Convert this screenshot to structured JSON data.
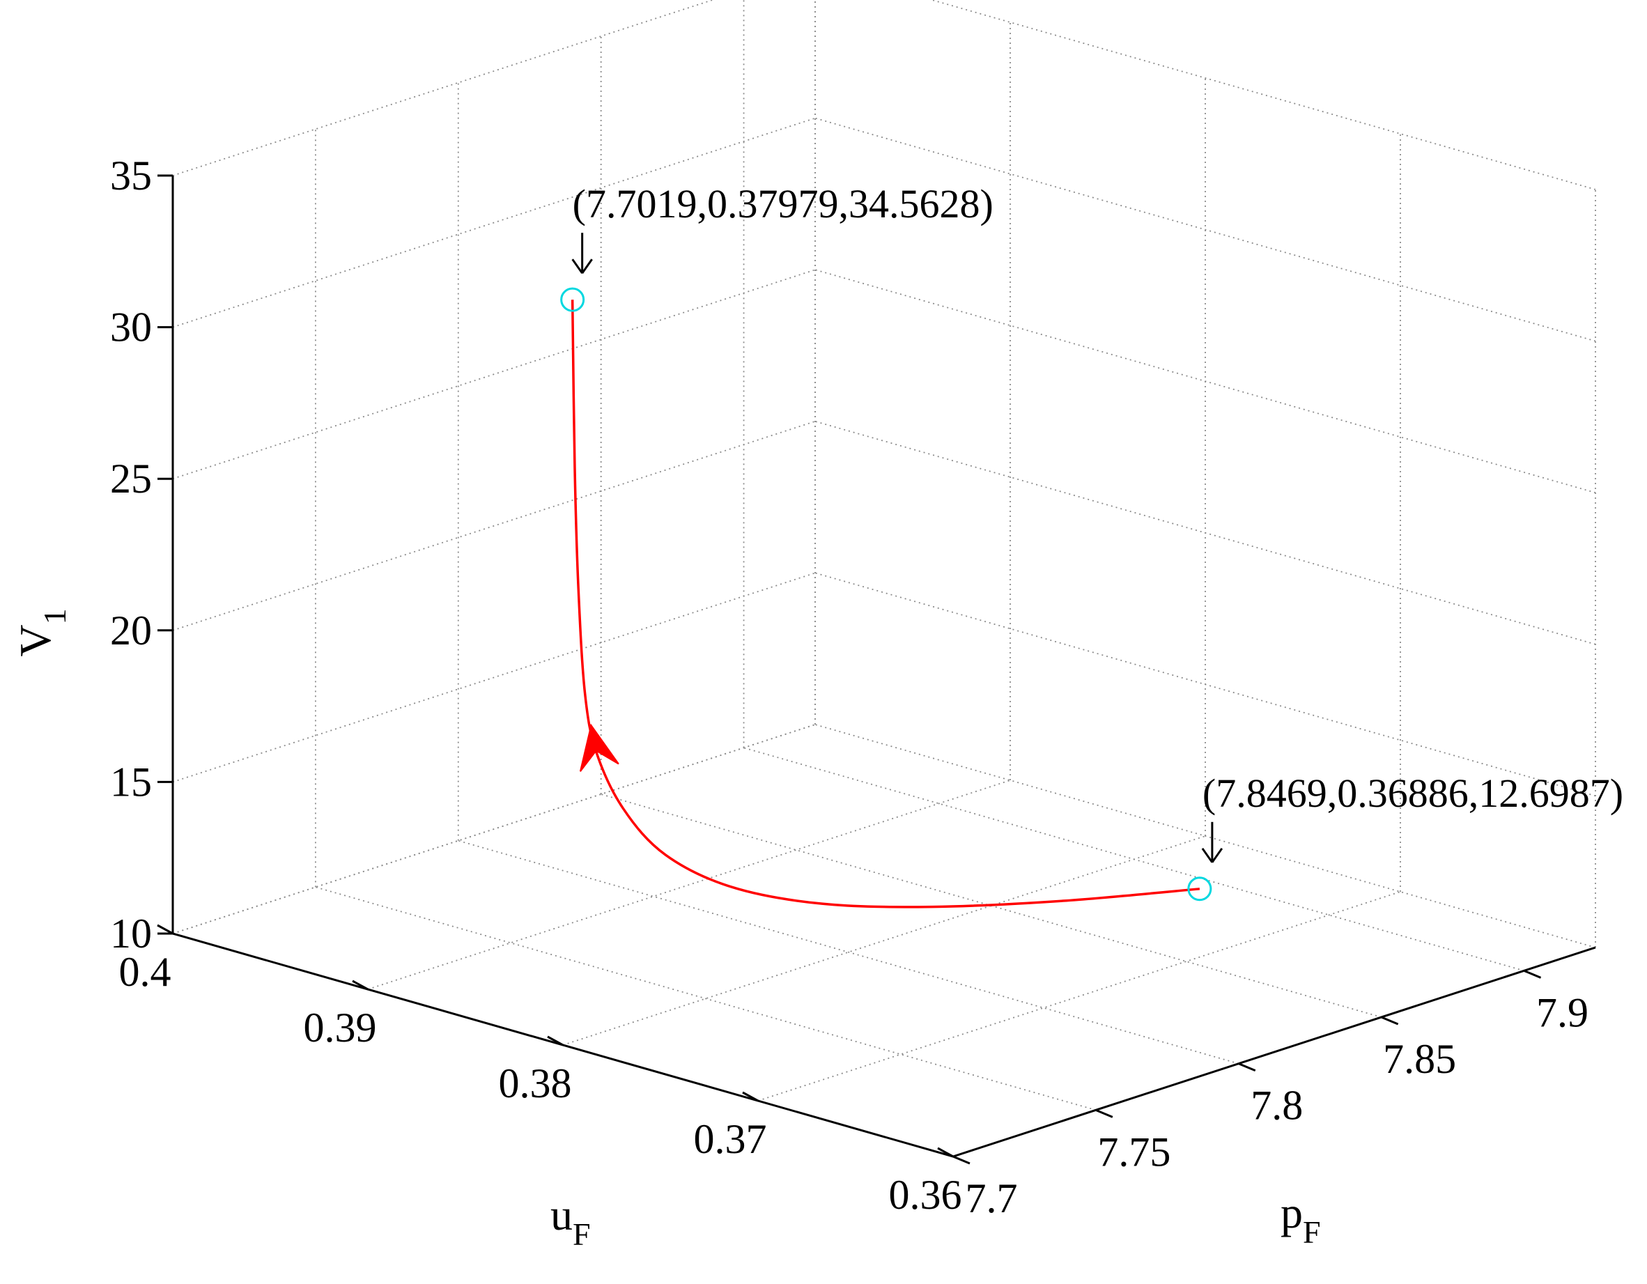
{
  "chart_data": {
    "type": "line3d",
    "axes": {
      "x": {
        "label": "p",
        "label_sub": "F",
        "range": [
          7.7,
          7.925
        ],
        "ticks": [
          7.7,
          7.75,
          7.8,
          7.85,
          7.9
        ],
        "tick_labels": [
          "7.7",
          "7.75",
          "7.8",
          "7.85",
          "7.9"
        ]
      },
      "y": {
        "label": "u",
        "label_sub": "F",
        "range": [
          0.36,
          0.4
        ],
        "ticks": [
          0.36,
          0.37,
          0.38,
          0.39,
          0.4
        ],
        "tick_labels": [
          "0.36",
          "0.37",
          "0.38",
          "0.39",
          "0.4"
        ]
      },
      "z": {
        "label": "V",
        "label_sub": "1",
        "range": [
          10,
          35
        ],
        "ticks": [
          10,
          15,
          20,
          25,
          30,
          35
        ],
        "tick_labels": [
          "10",
          "15",
          "20",
          "25",
          "30",
          "35"
        ]
      }
    },
    "grid": true,
    "series": [
      {
        "color": "#ff0000",
        "direction_arrow": true,
        "points": [
          [
            7.8469,
            0.36886,
            12.6987
          ],
          [
            7.815,
            0.3712,
            12.85
          ],
          [
            7.785,
            0.3735,
            13.15
          ],
          [
            7.76,
            0.3755,
            13.65
          ],
          [
            7.74,
            0.3772,
            14.5
          ],
          [
            7.725,
            0.3784,
            15.8
          ],
          [
            7.715,
            0.3791,
            17.5
          ],
          [
            7.708,
            0.37945,
            19.5
          ],
          [
            7.705,
            0.3796,
            21.5
          ],
          [
            7.7035,
            0.37972,
            25.0
          ],
          [
            7.7025,
            0.37976,
            29.0
          ],
          [
            7.7019,
            0.37979,
            34.5628
          ]
        ]
      }
    ],
    "markers": [
      {
        "point": [
          7.7019,
          0.37979,
          34.5628
        ],
        "color": "#00d8e0"
      },
      {
        "point": [
          7.8469,
          0.36886,
          12.6987
        ],
        "color": "#00d8e0"
      }
    ],
    "annotations": [
      {
        "text": "(7.7019,0.37979,34.5628)",
        "point": [
          7.7019,
          0.37979,
          34.5628
        ]
      },
      {
        "text": "(7.8469,0.36886,12.6987)",
        "point": [
          7.8469,
          0.36886,
          12.6987
        ]
      }
    ]
  }
}
